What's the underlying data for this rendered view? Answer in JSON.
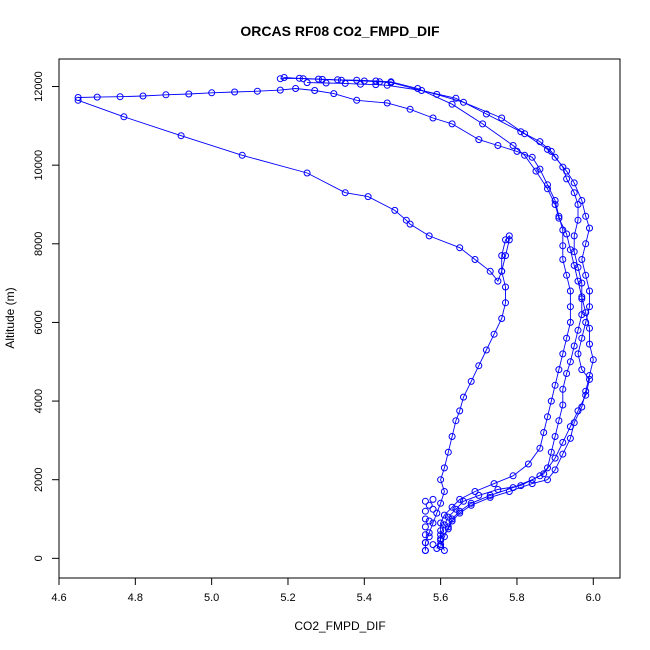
{
  "chart_data": {
    "type": "scatter",
    "title": "ORCAS RF08 CO2_FMPD_DIF",
    "xlabel": "CO2_FMPD_DIF",
    "ylabel": "Altitude (m)",
    "xlim": [
      4.6,
      6.07
    ],
    "ylim": [
      -500,
      12700
    ],
    "x_ticks": [
      "4.6",
      "4.8",
      "5.0",
      "5.2",
      "5.4",
      "5.6",
      "5.8",
      "6.0"
    ],
    "y_ticks": [
      "0",
      "2000",
      "4000",
      "6000",
      "8000",
      "10000",
      "12000"
    ],
    "grid": false,
    "legend": "none",
    "series_color": "#0000ff",
    "marker": "open-circle",
    "series": [
      {
        "points": [
          [
            5.56,
            200
          ],
          [
            5.56,
            400
          ],
          [
            5.57,
            650
          ],
          [
            5.58,
            900
          ],
          [
            5.59,
            1150
          ],
          [
            5.6,
            1400
          ],
          [
            5.61,
            1700
          ],
          [
            5.6,
            2000
          ],
          [
            5.61,
            2300
          ],
          [
            5.62,
            2700
          ],
          [
            5.63,
            3100
          ],
          [
            5.64,
            3500
          ],
          [
            5.65,
            3750
          ],
          [
            5.66,
            4100
          ],
          [
            5.68,
            4500
          ],
          [
            5.7,
            4900
          ],
          [
            5.72,
            5300
          ],
          [
            5.74,
            5700
          ],
          [
            5.76,
            6100
          ],
          [
            5.77,
            6500
          ],
          [
            5.77,
            6900
          ],
          [
            5.76,
            7300
          ],
          [
            5.76,
            7700
          ],
          [
            5.77,
            8100
          ],
          [
            5.78,
            8200
          ],
          [
            5.78,
            8100
          ],
          [
            5.77,
            7700
          ],
          [
            5.76,
            7300
          ],
          [
            5.75,
            7050
          ],
          [
            5.73,
            7300
          ],
          [
            5.69,
            7600
          ],
          [
            5.65,
            7900
          ],
          [
            5.57,
            8200
          ],
          [
            5.52,
            8500
          ],
          [
            5.51,
            8600
          ],
          [
            5.48,
            8850
          ],
          [
            5.41,
            9200
          ],
          [
            5.35,
            9300
          ],
          [
            5.25,
            9800
          ],
          [
            5.08,
            10250
          ],
          [
            4.92,
            10750
          ],
          [
            4.77,
            11230
          ],
          [
            4.65,
            11650
          ]
        ]
      },
      {
        "points": [
          [
            4.65,
            11720
          ],
          [
            4.7,
            11730
          ],
          [
            4.76,
            11740
          ],
          [
            4.82,
            11760
          ],
          [
            4.88,
            11790
          ],
          [
            4.94,
            11810
          ],
          [
            5.0,
            11840
          ],
          [
            5.06,
            11860
          ],
          [
            5.12,
            11880
          ],
          [
            5.18,
            11910
          ],
          [
            5.22,
            11950
          ],
          [
            5.27,
            11900
          ],
          [
            5.32,
            11820
          ],
          [
            5.38,
            11650
          ],
          [
            5.46,
            11580
          ],
          [
            5.52,
            11420
          ],
          [
            5.58,
            11200
          ],
          [
            5.63,
            11050
          ],
          [
            5.7,
            10650
          ],
          [
            5.75,
            10500
          ],
          [
            5.8,
            10350
          ],
          [
            5.84,
            10200
          ],
          [
            5.86,
            9900
          ],
          [
            5.88,
            9500
          ],
          [
            5.9,
            9100
          ],
          [
            5.91,
            8700
          ],
          [
            5.92,
            8350
          ],
          [
            5.92,
            7950
          ],
          [
            5.92,
            7600
          ],
          [
            5.93,
            7200
          ],
          [
            5.94,
            6800
          ],
          [
            5.94,
            6400
          ],
          [
            5.94,
            6000
          ],
          [
            5.93,
            5600
          ],
          [
            5.92,
            5200
          ],
          [
            5.91,
            4800
          ],
          [
            5.9,
            4400
          ],
          [
            5.89,
            4000
          ],
          [
            5.88,
            3600
          ],
          [
            5.87,
            3200
          ],
          [
            5.86,
            2800
          ],
          [
            5.83,
            2400
          ],
          [
            5.79,
            2100
          ],
          [
            5.74,
            1900
          ],
          [
            5.69,
            1700
          ],
          [
            5.65,
            1500
          ],
          [
            5.63,
            1300
          ],
          [
            5.61,
            1100
          ],
          [
            5.6,
            900
          ],
          [
            5.6,
            700
          ],
          [
            5.6,
            450
          ],
          [
            5.61,
            200
          ]
        ]
      },
      {
        "points": [
          [
            5.25,
            12100
          ],
          [
            5.3,
            12090
          ],
          [
            5.35,
            12080
          ],
          [
            5.39,
            12060
          ],
          [
            5.43,
            12050
          ],
          [
            5.46,
            12030
          ],
          [
            5.55,
            11900
          ],
          [
            5.64,
            11700
          ],
          [
            5.72,
            11300
          ],
          [
            5.81,
            10850
          ],
          [
            5.86,
            10600
          ],
          [
            5.89,
            10350
          ],
          [
            5.92,
            9950
          ],
          [
            5.93,
            9650
          ],
          [
            5.95,
            9300
          ],
          [
            5.96,
            9000
          ],
          [
            5.96,
            8600
          ],
          [
            5.95,
            8200
          ],
          [
            5.95,
            7800
          ],
          [
            5.96,
            7400
          ],
          [
            5.97,
            7000
          ],
          [
            5.97,
            6600
          ],
          [
            5.97,
            6200
          ],
          [
            5.96,
            5800
          ],
          [
            5.95,
            5400
          ],
          [
            5.94,
            5000
          ],
          [
            5.93,
            4700
          ],
          [
            5.92,
            4300
          ],
          [
            5.92,
            3900
          ],
          [
            5.91,
            3500
          ],
          [
            5.9,
            3100
          ],
          [
            5.89,
            2700
          ],
          [
            5.88,
            2300
          ],
          [
            5.86,
            2100
          ],
          [
            5.81,
            1850
          ],
          [
            5.75,
            1750
          ],
          [
            5.7,
            1600
          ],
          [
            5.66,
            1450
          ],
          [
            5.64,
            1250
          ],
          [
            5.62,
            1050
          ],
          [
            5.61,
            850
          ],
          [
            5.6,
            600
          ],
          [
            5.6,
            350
          ]
        ]
      },
      {
        "points": [
          [
            5.18,
            12200
          ],
          [
            5.23,
            12210
          ],
          [
            5.28,
            12190
          ],
          [
            5.33,
            12170
          ],
          [
            5.38,
            12160
          ],
          [
            5.43,
            12140
          ],
          [
            5.47,
            12120
          ],
          [
            5.54,
            11950
          ],
          [
            5.63,
            11550
          ],
          [
            5.71,
            11050
          ],
          [
            5.79,
            10500
          ],
          [
            5.82,
            10250
          ],
          [
            5.85,
            9850
          ],
          [
            5.88,
            9400
          ],
          [
            5.9,
            9000
          ],
          [
            5.91,
            8650
          ],
          [
            5.93,
            8250
          ],
          [
            5.94,
            7850
          ],
          [
            5.95,
            7450
          ],
          [
            5.96,
            7050
          ],
          [
            5.97,
            6650
          ],
          [
            5.98,
            6250
          ],
          [
            5.99,
            5850
          ],
          [
            5.99,
            5450
          ],
          [
            6.0,
            5050
          ],
          [
            5.99,
            4650
          ],
          [
            5.98,
            4250
          ],
          [
            5.97,
            3850
          ],
          [
            5.95,
            3450
          ],
          [
            5.94,
            3050
          ],
          [
            5.92,
            2650
          ],
          [
            5.9,
            2250
          ],
          [
            5.88,
            2000
          ],
          [
            5.84,
            1900
          ],
          [
            5.78,
            1700
          ],
          [
            5.73,
            1550
          ],
          [
            5.68,
            1350
          ],
          [
            5.65,
            1150
          ],
          [
            5.63,
            950
          ],
          [
            5.62,
            750
          ],
          [
            5.6,
            500
          ],
          [
            5.59,
            250
          ]
        ]
      },
      {
        "points": [
          [
            5.19,
            12230
          ],
          [
            5.24,
            12200
          ],
          [
            5.29,
            12180
          ],
          [
            5.34,
            12160
          ],
          [
            5.4,
            12140
          ],
          [
            5.44,
            12120
          ],
          [
            5.47,
            12100
          ],
          [
            5.59,
            11800
          ],
          [
            5.66,
            11600
          ],
          [
            5.76,
            11200
          ],
          [
            5.82,
            10800
          ],
          [
            5.88,
            10400
          ],
          [
            5.9,
            10200
          ],
          [
            5.93,
            9850
          ],
          [
            5.95,
            9550
          ],
          [
            5.97,
            9100
          ],
          [
            5.98,
            8700
          ],
          [
            5.99,
            8400
          ],
          [
            5.98,
            8000
          ],
          [
            5.97,
            7600
          ],
          [
            5.98,
            7200
          ],
          [
            5.99,
            6800
          ],
          [
            5.99,
            6400
          ],
          [
            5.98,
            6000
          ],
          [
            5.97,
            5600
          ],
          [
            5.96,
            5200
          ],
          [
            5.97,
            4800
          ],
          [
            5.99,
            4550
          ],
          [
            5.98,
            4150
          ],
          [
            5.96,
            3750
          ],
          [
            5.94,
            3350
          ],
          [
            5.92,
            2950
          ],
          [
            5.9,
            2550
          ],
          [
            5.87,
            2150
          ],
          [
            5.84,
            2000
          ],
          [
            5.79,
            1800
          ],
          [
            5.73,
            1600
          ],
          [
            5.68,
            1400
          ],
          [
            5.65,
            1200
          ],
          [
            5.63,
            1000
          ],
          [
            5.62,
            800
          ],
          [
            5.61,
            550
          ],
          [
            5.6,
            300
          ]
        ]
      },
      {
        "points": [
          [
            5.56,
            1450
          ],
          [
            5.56,
            1200
          ],
          [
            5.56,
            1000
          ],
          [
            5.56,
            800
          ],
          [
            5.56,
            600
          ],
          [
            5.56,
            400
          ],
          [
            5.56,
            200
          ],
          [
            5.57,
            1350
          ],
          [
            5.57,
            950
          ],
          [
            5.57,
            550
          ],
          [
            5.58,
            1500
          ],
          [
            5.58,
            1250
          ],
          [
            5.58,
            350
          ]
        ]
      }
    ]
  }
}
